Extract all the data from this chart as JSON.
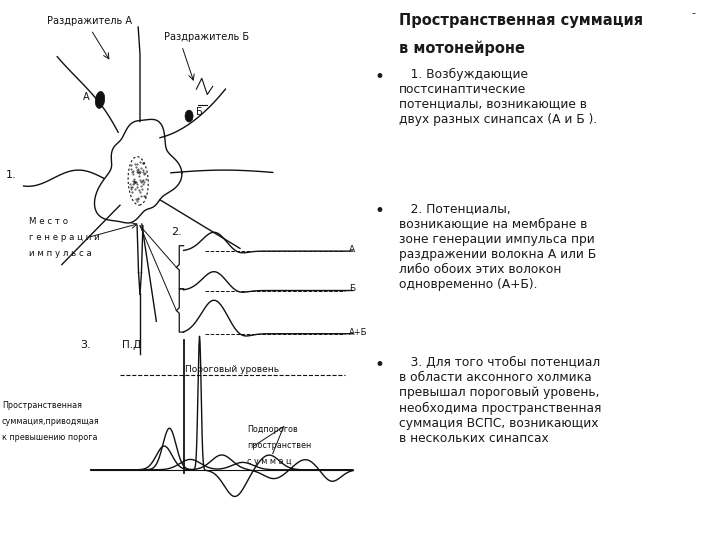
{
  "bg_color": "#ffffff",
  "text_color": "#1a1a1a",
  "font_size_title": 10.5,
  "font_size_body": 8.8,
  "title_line1": "Пространственная суммация",
  "title_line2": "в мотонейроне",
  "b1": "   1. Возбуждающие\nпостсинаптические\nпотенциалы, возникающие в\nдвух разных синапсах (А и Б ).",
  "b2": "   2. Потенциалы,\nвозникающие на мембране в\nзоне генерации импульса при\nраздражении волокна А или Б\nлибо обоих этих волокон\nодновременно (А+Б).",
  "b3": "   3. Для того чтобы потенциал\nв области аксонного холмика\nпревышал пороговый уровень,\nнеобходима пространственная\nсуммация ВСПС, возникающих\nв нескольких синапсах"
}
